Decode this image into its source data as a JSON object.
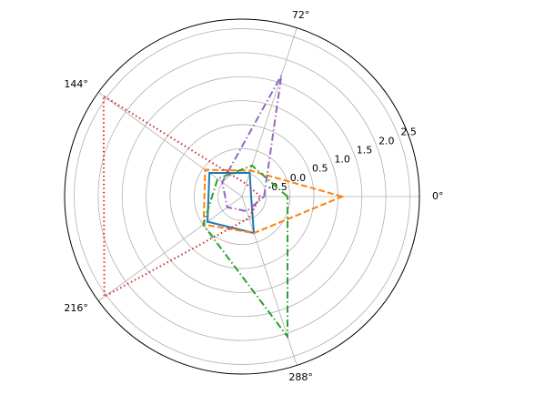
{
  "chart_data": {
    "type": "polar",
    "theta": [
      0,
      72,
      144,
      216,
      288
    ],
    "xticks": [
      {
        "value": 0,
        "label": "0°"
      },
      {
        "value": 72,
        "label": "72°"
      },
      {
        "value": 144,
        "label": "144°"
      },
      {
        "value": 216,
        "label": "216°"
      },
      {
        "value": 288,
        "label": "288°"
      }
    ],
    "ylim": [
      -1,
      2.7
    ],
    "yticks": [
      -0.5,
      {
        "value": 0,
        "label": "0.0"
      },
      0.5,
      {
        "value": 1,
        "label": "1.0"
      },
      1.5,
      {
        "value": 2,
        "label": "2.0"
      },
      2.5
    ],
    "grid": true,
    "series": [
      {
        "color": "#1f77b4",
        "linestyle": "solid",
        "values": [
          -0.81,
          -0.48,
          -0.16,
          -0.11,
          -0.2
        ]
      },
      {
        "color": "#ff7f0e",
        "linestyle": "dashed",
        "values": [
          1.09,
          -0.43,
          -0.05,
          -0.01,
          -0.2
        ]
      },
      {
        "color": "#2ca02c",
        "linestyle": "dashdot",
        "values": [
          -0.05,
          -0.32,
          -0.37,
          0.0,
          2.07
        ]
      },
      {
        "color": "#d62728",
        "linestyle": "dotted",
        "values": [
          -0.62,
          -0.72,
          2.57,
          2.55,
          -0.53
        ]
      },
      {
        "color": "#9467bd",
        "linestyle": "dashdot",
        "values": [
          -0.54,
          1.66,
          -0.49,
          -0.62,
          -0.68
        ]
      }
    ]
  }
}
